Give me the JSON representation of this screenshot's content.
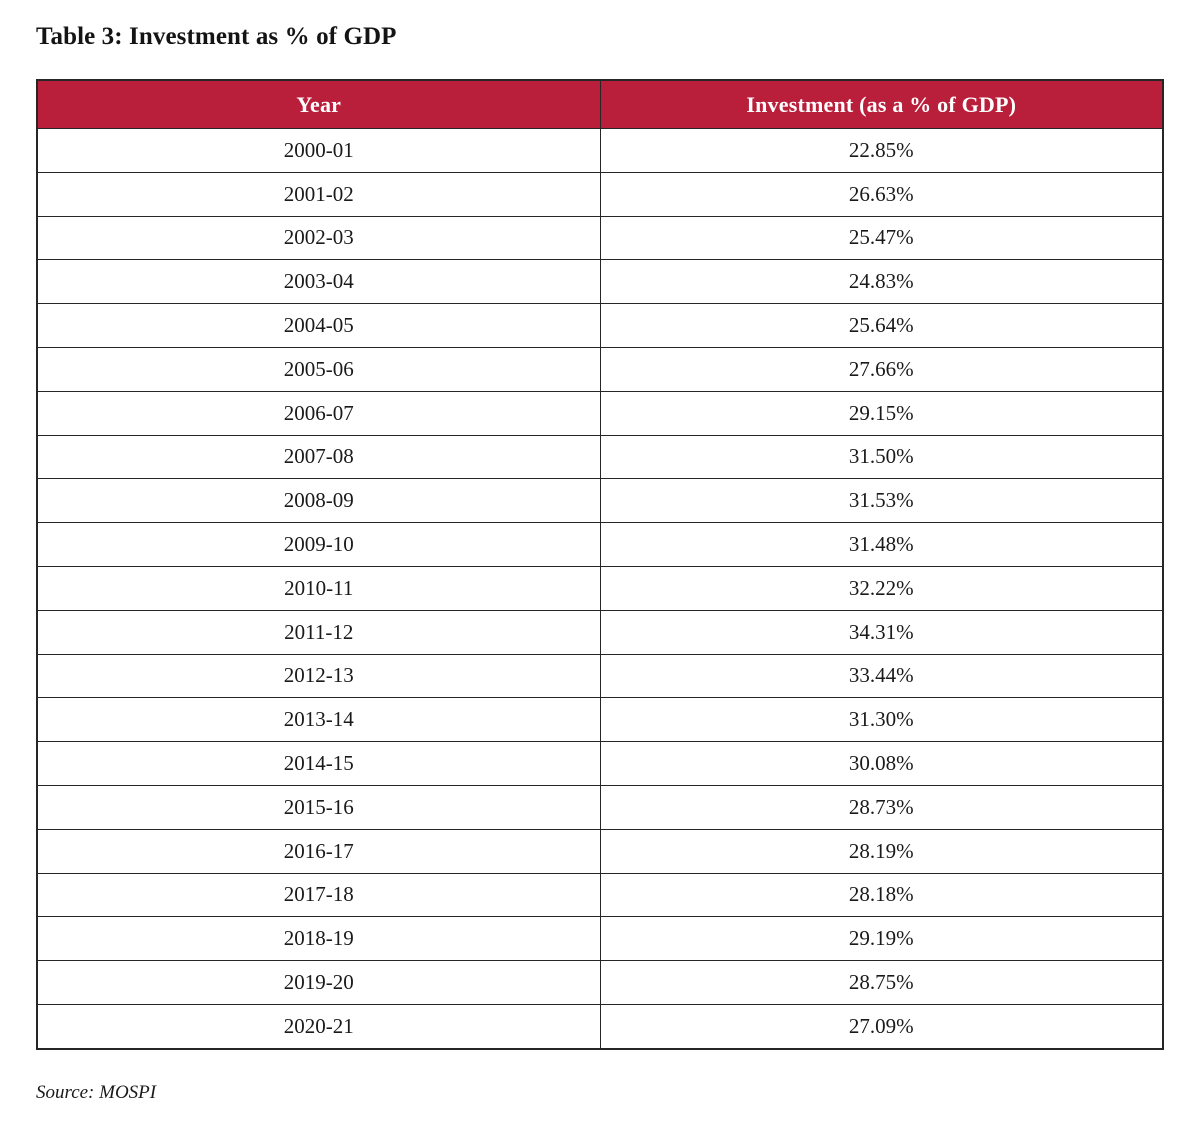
{
  "page": {
    "title": "Table 3: Investment as % of GDP",
    "source": "Source: MOSPI"
  },
  "table": {
    "columns": [
      "Year",
      "Investment (as a % of GDP)"
    ],
    "rows": [
      {
        "year": "2000-01",
        "investment": "22.85%"
      },
      {
        "year": "2001-02",
        "investment": "26.63%"
      },
      {
        "year": "2002-03",
        "investment": "25.47%"
      },
      {
        "year": "2003-04",
        "investment": "24.83%"
      },
      {
        "year": "2004-05",
        "investment": "25.64%"
      },
      {
        "year": "2005-06",
        "investment": "27.66%"
      },
      {
        "year": "2006-07",
        "investment": "29.15%"
      },
      {
        "year": "2007-08",
        "investment": "31.50%"
      },
      {
        "year": "2008-09",
        "investment": "31.53%"
      },
      {
        "year": "2009-10",
        "investment": "31.48%"
      },
      {
        "year": "2010-11",
        "investment": "32.22%"
      },
      {
        "year": "2011-12",
        "investment": "34.31%"
      },
      {
        "year": "2012-13",
        "investment": "33.44%"
      },
      {
        "year": "2013-14",
        "investment": "31.30%"
      },
      {
        "year": "2014-15",
        "investment": "30.08%"
      },
      {
        "year": "2015-16",
        "investment": "28.73%"
      },
      {
        "year": "2016-17",
        "investment": "28.19%"
      },
      {
        "year": "2017-18",
        "investment": "28.18%"
      },
      {
        "year": "2018-19",
        "investment": "29.19%"
      },
      {
        "year": "2019-20",
        "investment": "28.75%"
      },
      {
        "year": "2020-21",
        "investment": "27.09%"
      }
    ]
  },
  "colors": {
    "header_bg": "#b91f3b",
    "header_text": "#ffffff",
    "body_text": "#1a1a1a",
    "border": "#262626"
  }
}
